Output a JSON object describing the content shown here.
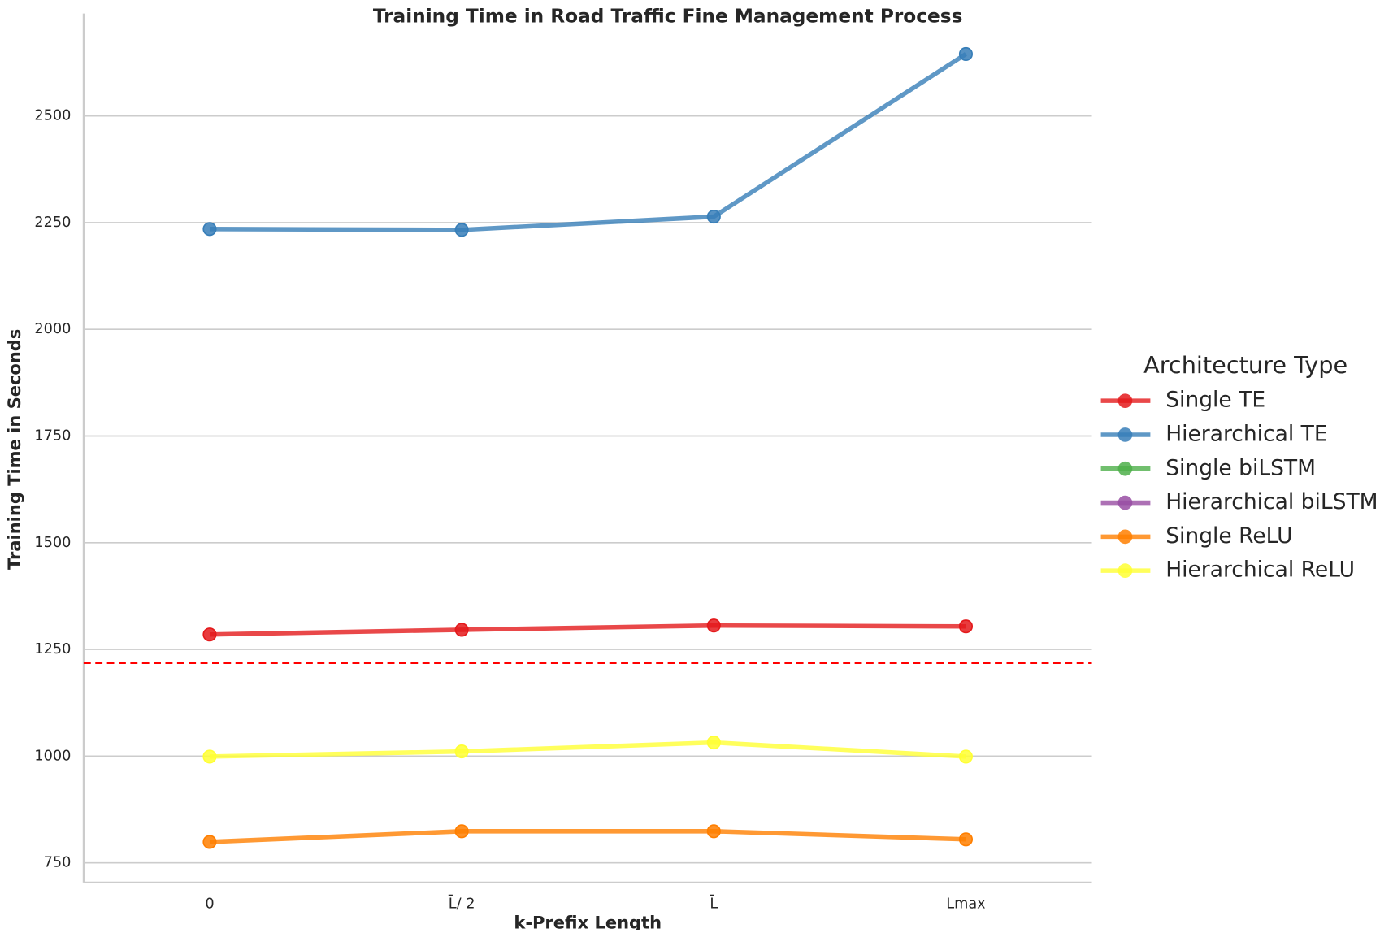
{
  "chart_data": {
    "type": "line",
    "title": "Training Time in Road Traffic Fine Management Process",
    "x_label": "k-Prefix Length",
    "y_label": "Training Time in Seconds",
    "categories": [
      "0",
      "L̄/ 2",
      "L̄",
      "Lmax"
    ],
    "series": [
      {
        "name": "Single TE",
        "color": "#e41a1c",
        "values": [
          1285,
          1296,
          1306,
          1304
        ]
      },
      {
        "name": "Hierarchical TE",
        "color": "#377eb8",
        "values": [
          2235,
          2233,
          2264,
          2645
        ]
      },
      {
        "name": "Single biLSTM",
        "color": "#4daf4a",
        "values": [
          null,
          null,
          null,
          null
        ]
      },
      {
        "name": "Hierarchical biLSTM",
        "color": "#984ea3",
        "values": [
          null,
          null,
          null,
          null
        ]
      },
      {
        "name": "Single ReLU",
        "color": "#ff7f00",
        "values": [
          799,
          824,
          824,
          805
        ]
      },
      {
        "name": "Hierarchical ReLU",
        "color": "#ffff33",
        "values": [
          999,
          1011,
          1032,
          999
        ]
      }
    ],
    "reference_line": {
      "value": 1218,
      "color": "#ff0000"
    },
    "ylim": [
      704,
      2740
    ],
    "yticks": [
      750,
      1000,
      1250,
      1500,
      1750,
      2000,
      2250,
      2500
    ],
    "grid": true,
    "legend_title": "Architecture Type",
    "legend": "right"
  }
}
